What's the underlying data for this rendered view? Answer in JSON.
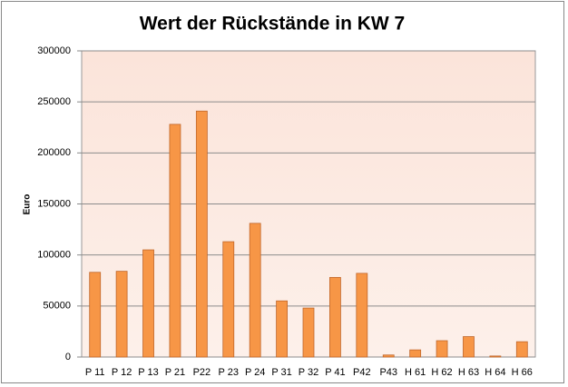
{
  "chart_data": {
    "type": "bar",
    "title": "Wert der Rückstände in KW 7",
    "y_label": "Euro",
    "categories": [
      "P 11",
      "P 12",
      "P 13",
      "P 21",
      "P22",
      "P 23",
      "P 24",
      "P 31",
      "P 32",
      "P 41",
      "P42",
      "P43",
      "H 61",
      "H 62",
      "H 63",
      "H 64",
      "H 66"
    ],
    "values": [
      83000,
      84000,
      105000,
      228000,
      241000,
      113000,
      131000,
      55000,
      48000,
      78000,
      82000,
      2000,
      7000,
      16000,
      20000,
      1000,
      15000
    ],
    "color": "#f79646",
    "ylim": [
      0,
      300000
    ],
    "yticks": [
      0,
      50000,
      100000,
      150000,
      200000,
      250000,
      300000
    ],
    "grid": true
  }
}
